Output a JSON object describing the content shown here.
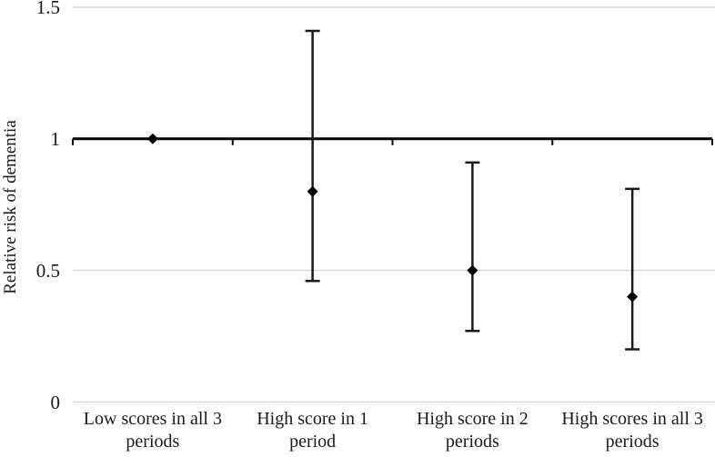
{
  "chart_data": {
    "type": "scatter",
    "subtype": "forest-plot-error-bars",
    "title": "",
    "xlabel": "",
    "ylabel": "Relative risk of dementia",
    "ylim": [
      0,
      1.5
    ],
    "yticks": [
      0,
      0.5,
      1,
      1.5
    ],
    "ytick_labels": [
      "0",
      "0.5",
      "1",
      "1.5"
    ],
    "reference_line": 1,
    "grid": true,
    "legend": "none",
    "marker": "diamond",
    "categories": [
      "Low scores in all 3 periods",
      "High score in 1 period",
      "High score in 2 periods",
      "High scores in all 3 periods"
    ],
    "category_label_lines": [
      [
        "Low scores in all 3",
        "periods"
      ],
      [
        "High score in 1",
        "period"
      ],
      [
        "High score in 2",
        "periods"
      ],
      [
        "High scores in all 3",
        "periods"
      ]
    ],
    "series": [
      {
        "name": "Relative risk of dementia",
        "values": [
          1.0,
          0.8,
          0.5,
          0.4
        ],
        "ci_low": [
          null,
          0.46,
          0.27,
          0.2
        ],
        "ci_high": [
          null,
          1.41,
          0.91,
          0.81
        ]
      }
    ],
    "colors": {
      "marker": "#000000",
      "error_bar": "#1a1a1a",
      "axis": "#000000",
      "gridline": "#d9d9d9",
      "text": "#1a1a1a",
      "background": "#ffffff"
    }
  }
}
